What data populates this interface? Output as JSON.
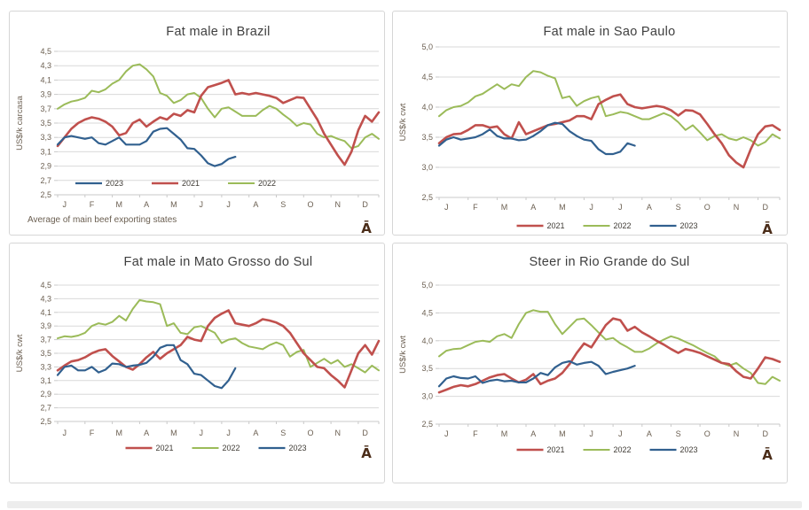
{
  "page": {
    "background": "#FFFFFF",
    "bottom_bar_color": "#EDEDED"
  },
  "styles": {
    "grid_color": "#D9D9D9",
    "axis_color": "#C9C9C9",
    "tick_text_color": "#6B5F51",
    "title_color": "#3F3F3F",
    "legend_text_color": "#3F3B35",
    "footnote_color": "#6B5F51",
    "watermark_color": "#4A2C18",
    "card_border_color": "#D6D6D6",
    "series_colors": {
      "2021": "#C0504D",
      "2022": "#9BBB59",
      "2023": "#31608F"
    }
  },
  "months": [
    "J",
    "F",
    "M",
    "A",
    "M",
    "J",
    "J",
    "A",
    "S",
    "O",
    "N",
    "D"
  ],
  "chart_data": [
    {
      "type": "line",
      "title": "Fat male in Brazil",
      "xlabel": "",
      "ylabel": "US$/k carcasa",
      "ylim": [
        2.5,
        4.5
      ],
      "ytick_values": [
        4.5,
        4.3,
        4.1,
        3.9,
        3.7,
        3.5,
        3.3,
        3.1,
        2.9,
        2.7,
        2.5
      ],
      "ytick_labels": [
        "4,5",
        "4,3",
        "4,1",
        "3,9",
        "3,7",
        "3,5",
        "3,3",
        "3,1",
        "2,9",
        "2,7",
        "2,5"
      ],
      "xtick_labels": [
        "J",
        "F",
        "M",
        "A",
        "M",
        "J",
        "J",
        "A",
        "S",
        "O",
        "N",
        "D"
      ],
      "legend_order": [
        "2023",
        "2021",
        "2022"
      ],
      "legend_position": "inside-bottom-left",
      "footnote": "Average  of main beef exporting states",
      "watermark": "Ā",
      "grid": true,
      "series": [
        {
          "name": "2021",
          "color": "#C0504D",
          "values": [
            3.18,
            3.3,
            3.42,
            3.5,
            3.55,
            3.58,
            3.56,
            3.52,
            3.45,
            3.33,
            3.36,
            3.5,
            3.55,
            3.45,
            3.52,
            3.58,
            3.55,
            3.63,
            3.6,
            3.68,
            3.65,
            3.88,
            4.0,
            4.03,
            4.06,
            4.1,
            3.9,
            3.92,
            3.9,
            3.92,
            3.9,
            3.88,
            3.85,
            3.78,
            3.82,
            3.86,
            3.85,
            3.7,
            3.55,
            3.35,
            3.2,
            3.05,
            2.92,
            3.1,
            3.4,
            3.6,
            3.52,
            3.65
          ]
        },
        {
          "name": "2022",
          "color": "#9BBB59",
          "values": [
            3.7,
            3.76,
            3.8,
            3.82,
            3.85,
            3.95,
            3.93,
            3.97,
            4.05,
            4.1,
            4.22,
            4.3,
            4.32,
            4.25,
            4.15,
            3.92,
            3.88,
            3.78,
            3.82,
            3.9,
            3.92,
            3.85,
            3.7,
            3.58,
            3.7,
            3.72,
            3.66,
            3.6,
            3.6,
            3.6,
            3.68,
            3.74,
            3.7,
            3.62,
            3.55,
            3.46,
            3.5,
            3.48,
            3.35,
            3.3,
            3.32,
            3.28,
            3.25,
            3.15,
            3.18,
            3.3,
            3.35,
            3.28
          ]
        },
        {
          "name": "2023",
          "color": "#31608F",
          "values": [
            3.2,
            3.3,
            3.32,
            3.3,
            3.28,
            3.3,
            3.22,
            3.2,
            3.25,
            3.3,
            3.2,
            3.2,
            3.2,
            3.25,
            3.38,
            3.42,
            3.43,
            3.35,
            3.27,
            3.15,
            3.14,
            3.05,
            2.94,
            2.9,
            2.93,
            3.0,
            3.03
          ]
        }
      ]
    },
    {
      "type": "line",
      "title": "Fat male in Sao Paulo",
      "xlabel": "",
      "ylabel": "US$/k cwt",
      "ylim": [
        2.5,
        5.0
      ],
      "ytick_values": [
        5.0,
        4.5,
        4.0,
        3.5,
        3.0,
        2.5
      ],
      "ytick_labels": [
        "5,0",
        "4,5",
        "4,0",
        "3,5",
        "3,0",
        "2,5"
      ],
      "xtick_labels": [
        "J",
        "F",
        "M",
        "A",
        "M",
        "J",
        "J",
        "A",
        "S",
        "O",
        "N",
        "D"
      ],
      "legend_order": [
        "2021",
        "2022",
        "2023"
      ],
      "legend_position": "below-center",
      "footnote": "",
      "watermark": "Ā",
      "grid": true,
      "series": [
        {
          "name": "2021",
          "color": "#C0504D",
          "values": [
            3.4,
            3.5,
            3.55,
            3.56,
            3.62,
            3.7,
            3.7,
            3.66,
            3.68,
            3.55,
            3.48,
            3.75,
            3.55,
            3.6,
            3.65,
            3.7,
            3.72,
            3.75,
            3.78,
            3.85,
            3.85,
            3.8,
            4.05,
            4.12,
            4.18,
            4.21,
            4.05,
            4.0,
            3.98,
            4.0,
            4.02,
            4.0,
            3.95,
            3.86,
            3.95,
            3.94,
            3.88,
            3.72,
            3.55,
            3.4,
            3.2,
            3.08,
            3.0,
            3.3,
            3.55,
            3.68,
            3.7,
            3.62
          ]
        },
        {
          "name": "2022",
          "color": "#9BBB59",
          "values": [
            3.85,
            3.95,
            4.0,
            4.02,
            4.08,
            4.18,
            4.22,
            4.3,
            4.38,
            4.3,
            4.38,
            4.35,
            4.5,
            4.6,
            4.58,
            4.52,
            4.48,
            4.15,
            4.18,
            4.02,
            4.1,
            4.15,
            4.18,
            3.85,
            3.88,
            3.92,
            3.9,
            3.85,
            3.8,
            3.8,
            3.85,
            3.9,
            3.85,
            3.75,
            3.62,
            3.7,
            3.58,
            3.45,
            3.52,
            3.55,
            3.48,
            3.45,
            3.5,
            3.45,
            3.36,
            3.42,
            3.55,
            3.48
          ]
        },
        {
          "name": "2023",
          "color": "#31608F",
          "values": [
            3.36,
            3.46,
            3.5,
            3.46,
            3.48,
            3.5,
            3.55,
            3.63,
            3.52,
            3.48,
            3.48,
            3.45,
            3.46,
            3.52,
            3.6,
            3.7,
            3.74,
            3.72,
            3.6,
            3.52,
            3.46,
            3.44,
            3.3,
            3.22,
            3.22,
            3.26,
            3.4,
            3.36
          ]
        }
      ]
    },
    {
      "type": "line",
      "title": "Fat male in Mato Grosso do Sul",
      "xlabel": "",
      "ylabel": "US$/k cwt",
      "ylim": [
        2.5,
        4.5
      ],
      "ytick_values": [
        4.5,
        4.3,
        4.1,
        3.9,
        3.7,
        3.5,
        3.3,
        3.1,
        2.9,
        2.7,
        2.5
      ],
      "ytick_labels": [
        "4,5",
        "4,3",
        "4,1",
        "3,9",
        "3,7",
        "3,5",
        "3,3",
        "3,1",
        "2,9",
        "2,7",
        "2,5"
      ],
      "xtick_labels": [
        "J",
        "F",
        "M",
        "A",
        "M",
        "J",
        "J",
        "A",
        "S",
        "O",
        "N",
        "D"
      ],
      "legend_order": [
        "2021",
        "2022",
        "2023"
      ],
      "legend_position": "below-center",
      "footnote": "",
      "watermark": "Ā",
      "grid": true,
      "series": [
        {
          "name": "2021",
          "color": "#C0504D",
          "values": [
            3.25,
            3.32,
            3.38,
            3.4,
            3.44,
            3.5,
            3.54,
            3.56,
            3.46,
            3.38,
            3.3,
            3.26,
            3.34,
            3.44,
            3.52,
            3.42,
            3.5,
            3.56,
            3.62,
            3.74,
            3.7,
            3.68,
            3.9,
            4.02,
            4.08,
            4.13,
            3.94,
            3.92,
            3.9,
            3.94,
            4.0,
            3.98,
            3.95,
            3.9,
            3.8,
            3.65,
            3.5,
            3.4,
            3.3,
            3.28,
            3.18,
            3.1,
            3.0,
            3.25,
            3.5,
            3.62,
            3.48,
            3.68
          ]
        },
        {
          "name": "2022",
          "color": "#9BBB59",
          "values": [
            3.72,
            3.75,
            3.74,
            3.76,
            3.8,
            3.9,
            3.94,
            3.92,
            3.96,
            4.05,
            3.98,
            4.15,
            4.28,
            4.26,
            4.25,
            4.22,
            3.9,
            3.94,
            3.8,
            3.78,
            3.88,
            3.9,
            3.85,
            3.8,
            3.65,
            3.7,
            3.72,
            3.65,
            3.6,
            3.58,
            3.56,
            3.62,
            3.66,
            3.62,
            3.45,
            3.52,
            3.55,
            3.3,
            3.36,
            3.42,
            3.35,
            3.4,
            3.3,
            3.34,
            3.28,
            3.22,
            3.32,
            3.25
          ]
        },
        {
          "name": "2023",
          "color": "#31608F",
          "values": [
            3.18,
            3.3,
            3.32,
            3.25,
            3.25,
            3.3,
            3.22,
            3.26,
            3.35,
            3.34,
            3.3,
            3.32,
            3.33,
            3.36,
            3.45,
            3.58,
            3.62,
            3.62,
            3.4,
            3.34,
            3.2,
            3.18,
            3.1,
            3.02,
            2.99,
            3.1,
            3.28
          ]
        }
      ]
    },
    {
      "type": "line",
      "title": "Steer  in Rio Grande do Sul",
      "xlabel": "",
      "ylabel": "US$/k cwt",
      "ylim": [
        2.5,
        5.0
      ],
      "ytick_values": [
        5.0,
        4.5,
        4.0,
        3.5,
        3.0,
        2.5
      ],
      "ytick_labels": [
        "5,0",
        "4,5",
        "4,0",
        "3,5",
        "3,0",
        "2,5"
      ],
      "xtick_labels": [
        "J",
        "F",
        "M",
        "A",
        "M",
        "J",
        "J",
        "A",
        "S",
        "O",
        "N",
        "D"
      ],
      "legend_order": [
        "2021",
        "2022",
        "2023"
      ],
      "legend_position": "below-center",
      "footnote": "",
      "watermark": "Ā",
      "grid": true,
      "series": [
        {
          "name": "2021",
          "color": "#C0504D",
          "values": [
            3.07,
            3.12,
            3.17,
            3.2,
            3.18,
            3.22,
            3.28,
            3.34,
            3.38,
            3.4,
            3.32,
            3.25,
            3.3,
            3.4,
            3.22,
            3.28,
            3.32,
            3.42,
            3.58,
            3.78,
            3.95,
            3.88,
            4.08,
            4.28,
            4.4,
            4.37,
            4.18,
            4.25,
            4.15,
            4.08,
            4.0,
            3.93,
            3.85,
            3.78,
            3.85,
            3.82,
            3.78,
            3.72,
            3.66,
            3.6,
            3.58,
            3.45,
            3.35,
            3.32,
            3.5,
            3.7,
            3.67,
            3.62
          ]
        },
        {
          "name": "2022",
          "color": "#9BBB59",
          "values": [
            3.72,
            3.82,
            3.85,
            3.86,
            3.92,
            3.98,
            4.0,
            3.98,
            4.08,
            4.12,
            4.05,
            4.3,
            4.5,
            4.55,
            4.52,
            4.52,
            4.3,
            4.12,
            4.25,
            4.38,
            4.4,
            4.28,
            4.15,
            4.02,
            4.05,
            3.95,
            3.88,
            3.8,
            3.8,
            3.86,
            3.95,
            4.02,
            4.08,
            4.04,
            3.98,
            3.92,
            3.85,
            3.78,
            3.72,
            3.6,
            3.55,
            3.6,
            3.5,
            3.42,
            3.24,
            3.22,
            3.35,
            3.28
          ]
        },
        {
          "name": "2023",
          "color": "#31608F",
          "values": [
            3.18,
            3.32,
            3.36,
            3.33,
            3.32,
            3.36,
            3.24,
            3.28,
            3.3,
            3.27,
            3.28,
            3.25,
            3.25,
            3.32,
            3.42,
            3.38,
            3.52,
            3.6,
            3.63,
            3.57,
            3.6,
            3.62,
            3.55,
            3.4,
            3.44,
            3.47,
            3.5,
            3.55
          ]
        }
      ]
    }
  ]
}
